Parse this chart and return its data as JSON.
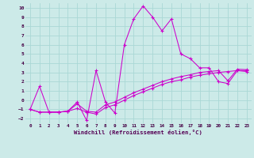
{
  "xlabel": "Windchill (Refroidissement éolien,°C)",
  "background_color": "#cceae8",
  "grid_color": "#aad8d5",
  "line_color": "#cc00cc",
  "xlim": [
    -0.5,
    23.5
  ],
  "ylim": [
    -2.5,
    10.5
  ],
  "xticks": [
    0,
    1,
    2,
    3,
    4,
    5,
    6,
    7,
    8,
    9,
    10,
    11,
    12,
    13,
    14,
    15,
    16,
    17,
    18,
    19,
    20,
    21,
    22,
    23
  ],
  "yticks": [
    -2,
    -1,
    0,
    1,
    2,
    3,
    4,
    5,
    6,
    7,
    8,
    9,
    10
  ],
  "series1_x": [
    0,
    1,
    2,
    3,
    4,
    5,
    6,
    7,
    8,
    9,
    10,
    11,
    12,
    13,
    14,
    15,
    16,
    17,
    18,
    19,
    20,
    21,
    22,
    23
  ],
  "series1_y": [
    -1.0,
    1.5,
    -1.3,
    -1.3,
    -1.2,
    -0.2,
    -2.2,
    3.2,
    -0.2,
    -1.4,
    6.0,
    8.8,
    10.2,
    9.0,
    7.5,
    8.8,
    5.0,
    4.5,
    3.5,
    3.5,
    2.0,
    1.8,
    3.2,
    3.1
  ],
  "series2_x": [
    0,
    1,
    2,
    3,
    4,
    5,
    6,
    7,
    8,
    9,
    10,
    11,
    12,
    13,
    14,
    15,
    16,
    17,
    18,
    19,
    20,
    21,
    22,
    23
  ],
  "series2_y": [
    -1.0,
    -1.3,
    -1.3,
    -1.3,
    -1.2,
    -0.9,
    -1.3,
    -1.5,
    -0.8,
    -0.5,
    0.0,
    0.5,
    0.9,
    1.3,
    1.7,
    2.0,
    2.2,
    2.5,
    2.7,
    2.85,
    3.0,
    3.1,
    3.2,
    3.2
  ],
  "series3_x": [
    0,
    1,
    2,
    3,
    4,
    5,
    6,
    7,
    8,
    9,
    10,
    11,
    12,
    13,
    14,
    15,
    16,
    17,
    18,
    19,
    20,
    21,
    22,
    23
  ],
  "series3_y": [
    -1.0,
    -1.3,
    -1.3,
    -1.3,
    -1.2,
    -0.4,
    -1.2,
    -1.3,
    -0.5,
    -0.2,
    0.3,
    0.8,
    1.2,
    1.6,
    2.0,
    2.3,
    2.55,
    2.75,
    3.0,
    3.1,
    3.2,
    2.1,
    3.35,
    3.3
  ]
}
